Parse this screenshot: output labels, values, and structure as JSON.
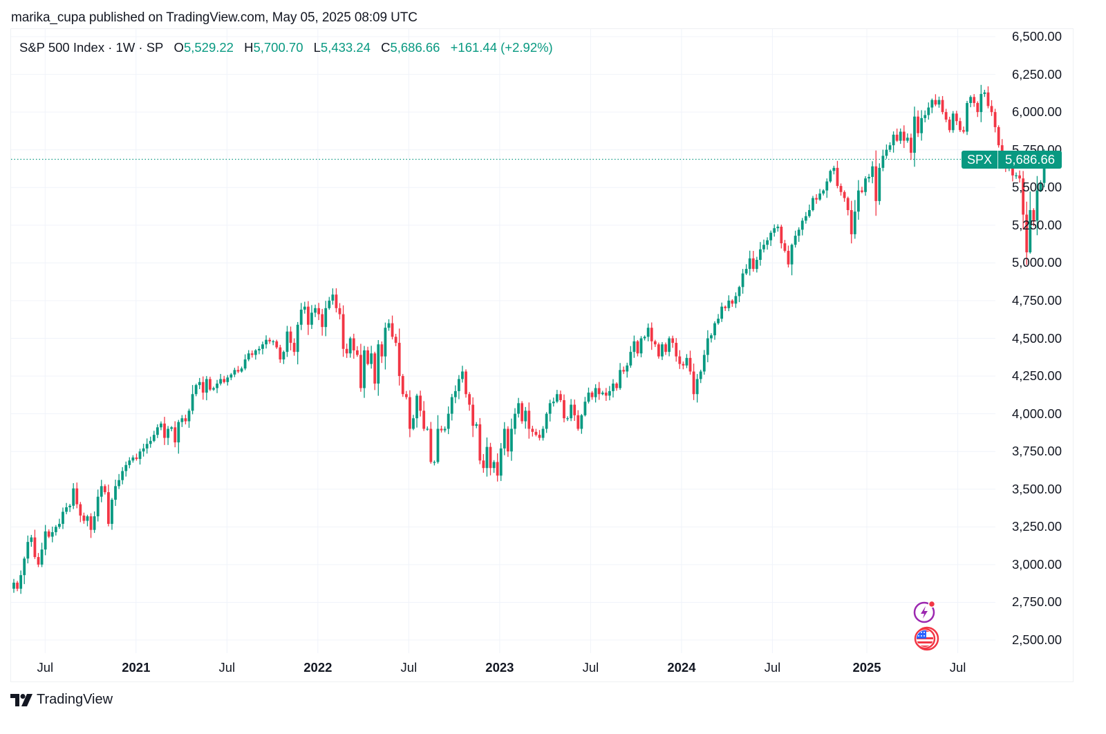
{
  "header": {
    "published": "marika_cupa published on TradingView.com, May 05, 2025 08:09 UTC"
  },
  "legend": {
    "title": "S&P 500 Index · 1W · SP",
    "open_label": "O",
    "open": "5,529.22",
    "high_label": "H",
    "high": "5,700.70",
    "low_label": "L",
    "low": "5,433.24",
    "close_label": "C",
    "close": "5,686.66",
    "change": "+161.44 (+2.92%)"
  },
  "price_badge": {
    "symbol": "SPX",
    "price": "5,686.66"
  },
  "footer": {
    "brand": "TradingView"
  },
  "colors": {
    "up": "#089981",
    "down": "#F23645",
    "grid": "#F0F3FA",
    "text": "#131722"
  },
  "icons": [
    "flash-news-icon",
    "us-flag-event-icon",
    "tradingview-logo-icon"
  ],
  "chart_data": {
    "type": "candlestick",
    "title": "S&P 500 Index · 1W · SP",
    "ylabel": "",
    "xlabel": "",
    "ylim": [
      2400,
      6600
    ],
    "y_ticks": [
      "6,500.00",
      "6,250.00",
      "6,000.00",
      "5,750.00",
      "5,500.00",
      "5,250.00",
      "5,000.00",
      "4,750.00",
      "4,500.00",
      "4,250.00",
      "4,000.00",
      "3,750.00",
      "3,500.00",
      "3,250.00",
      "3,000.00",
      "2,750.00",
      "2,500.00"
    ],
    "y_tick_values": [
      6500,
      6250,
      6000,
      5750,
      5500,
      5250,
      5000,
      4750,
      4500,
      4250,
      4000,
      3750,
      3500,
      3250,
      3000,
      2750,
      2500
    ],
    "x_ticks": [
      {
        "label": "Jul",
        "year": false,
        "week": 4
      },
      {
        "label": "2021",
        "year": true,
        "week": 30
      },
      {
        "label": "Jul",
        "year": false,
        "week": 56
      },
      {
        "label": "2022",
        "year": true,
        "week": 82
      },
      {
        "label": "Jul",
        "year": false,
        "week": 108
      },
      {
        "label": "2023",
        "year": true,
        "week": 134
      },
      {
        "label": "Jul",
        "year": false,
        "week": 160
      },
      {
        "label": "2024",
        "year": true,
        "week": 186
      },
      {
        "label": "Jul",
        "year": false,
        "week": 212
      },
      {
        "label": "2025",
        "year": true,
        "week": 239
      },
      {
        "label": "Jul",
        "year": false,
        "week": 265
      }
    ],
    "last_price": 5686.66,
    "grid": true,
    "close_path": [
      2880,
      2840,
      2930,
      3040,
      3150,
      3180,
      3050,
      3000,
      3100,
      3220,
      3185,
      3215,
      3250,
      3270,
      3350,
      3380,
      3390,
      3505,
      3400,
      3325,
      3290,
      3320,
      3230,
      3320,
      3450,
      3520,
      3480,
      3270,
      3430,
      3520,
      3560,
      3620,
      3660,
      3690,
      3710,
      3700,
      3750,
      3770,
      3800,
      3820,
      3860,
      3910,
      3935,
      3840,
      3900,
      3910,
      3810,
      3945,
      3970,
      3950,
      4020,
      4130,
      4190,
      4210,
      4140,
      4230,
      4160,
      4170,
      4200,
      4230,
      4210,
      4240,
      4260,
      4290,
      4280,
      4300,
      4360,
      4400,
      4390,
      4420,
      4430,
      4460,
      4490,
      4480,
      4480,
      4440,
      4360,
      4410,
      4545,
      4470,
      4410,
      4590,
      4690,
      4710,
      4590,
      4670,
      4700,
      4660,
      4575,
      4700,
      4750,
      4790,
      4700,
      4660,
      4430,
      4400,
      4500,
      4420,
      4390,
      4170,
      4420,
      4330,
      4400,
      4200,
      4460,
      4380,
      4570,
      4600,
      4510,
      4470,
      4250,
      4130,
      4110,
      3900,
      3970,
      4120,
      4020,
      3900,
      3900,
      3680,
      3680,
      3900,
      3890,
      3900,
      4000,
      4110,
      4150,
      4230,
      4280,
      4130,
      4060,
      3920,
      3930,
      3690,
      3640,
      3780,
      3640,
      3680,
      3590,
      3770,
      3900,
      3750,
      3900,
      4000,
      4070,
      3950,
      4020,
      3900,
      3880,
      3860,
      3840,
      3900,
      4000,
      4070,
      4080,
      4130,
      4090,
      3970,
      3970,
      4060,
      3990,
      3900,
      3990,
      4080,
      4140,
      4110,
      4170,
      4130,
      4140,
      4120,
      4150,
      4200,
      4170,
      4290,
      4280,
      4320,
      4410,
      4480,
      4400,
      4500,
      4510,
      4570,
      4480,
      4460,
      4380,
      4460,
      4410,
      4500,
      4470,
      4380,
      4330,
      4320,
      4370,
      4280,
      4130,
      4230,
      4280,
      4390,
      4500,
      4520,
      4600,
      4630,
      4710,
      4700,
      4750,
      4730,
      4780,
      4840,
      4930,
      4960,
      5030,
      4960,
      5020,
      5090,
      5120,
      5150,
      5200,
      5230,
      5240,
      5130,
      5080,
      4990,
      5120,
      5180,
      5220,
      5280,
      5310,
      5350,
      5430,
      5420,
      5460,
      5480,
      5540,
      5610,
      5630,
      5510,
      5470,
      5430,
      5350,
      5190,
      5340,
      5480,
      5470,
      5560,
      5570,
      5640,
      5410,
      5630,
      5710,
      5750,
      5780,
      5850,
      5810,
      5870,
      5810,
      5830,
      5730,
      5970,
      5860,
      5960,
      5980,
      6030,
      6080,
      6050,
      6080,
      6000,
      5950,
      5880,
      5990,
      5940,
      5880,
      5870,
      6060,
      6100,
      6060,
      6000,
      6120,
      6130,
      6040,
      6000,
      5900,
      5780,
      5690,
      5640,
      5660,
      5580,
      5580,
      5560,
      5320,
      5070,
      5350,
      5280,
      5480,
      5530,
      5686.66
    ]
  }
}
